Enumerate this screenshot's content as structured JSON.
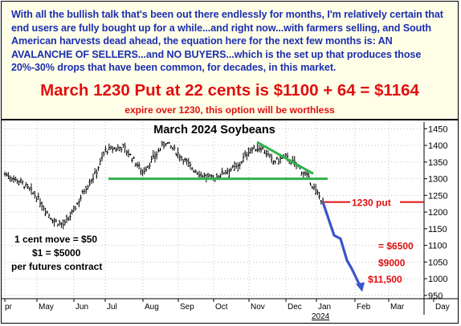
{
  "banner": {
    "commentary": "With all the bullish talk that's been out there endlessly for months, I'm relatively certain that end users are fully bought up for a while...and right now...with farmers selling, and South American harvests dead ahead, the equation here for the next few months is: AN AVALANCHE OF SELLERS...and NO BUYERS...which is the set up that produces those 20%-30% drops that have been common, for decades, in this market.",
    "offer": "March 1230 Put at 22 cents is $1100 + 64 = $1164",
    "note": "expire over 1230, this option will be worthless"
  },
  "chart_data": {
    "type": "candlestick",
    "title": "March 2024 Soybeans",
    "y_ticks": [
      950,
      1000,
      1050,
      1100,
      1150,
      1200,
      1250,
      1300,
      1350,
      1400,
      1450
    ],
    "ylim": [
      940,
      1470
    ],
    "x_ticks": [
      "pr",
      "May",
      "Jun",
      "Jul",
      "Aug",
      "Sep",
      "Oct",
      "Nov",
      "Dec",
      "Jan",
      "Feb",
      "Mar",
      "Day"
    ],
    "x_sublabel": "2024",
    "approx_close_path": [
      {
        "date": "Apr",
        "price": 1315
      },
      {
        "date": "mid-Apr",
        "price": 1290
      },
      {
        "date": "May",
        "price": 1245
      },
      {
        "date": "mid-May",
        "price": 1175
      },
      {
        "date": "late May",
        "price": 1160
      },
      {
        "date": "Jun",
        "price": 1205
      },
      {
        "date": "mid-Jun",
        "price": 1270
      },
      {
        "date": "late Jun",
        "price": 1320
      },
      {
        "date": "Jul",
        "price": 1385
      },
      {
        "date": "mid-Jul",
        "price": 1395
      },
      {
        "date": "Aug",
        "price": 1320
      },
      {
        "date": "mid-Aug",
        "price": 1365
      },
      {
        "date": "late Aug",
        "price": 1410
      },
      {
        "date": "Sep",
        "price": 1375
      },
      {
        "date": "mid-Sep",
        "price": 1330
      },
      {
        "date": "late Sep",
        "price": 1305
      },
      {
        "date": "Oct",
        "price": 1300
      },
      {
        "date": "mid-Oct",
        "price": 1325
      },
      {
        "date": "late Oct",
        "price": 1335
      },
      {
        "date": "Nov",
        "price": 1385
      },
      {
        "date": "mid-Nov",
        "price": 1395
      },
      {
        "date": "late Nov",
        "price": 1350
      },
      {
        "date": "Dec",
        "price": 1365
      },
      {
        "date": "mid-Dec",
        "price": 1340
      },
      {
        "date": "late Dec",
        "price": 1300
      },
      {
        "date": "Jan",
        "price": 1260
      },
      {
        "date": "early Jan",
        "price": 1230
      }
    ],
    "support_line": {
      "price": 1300,
      "from": "Jul",
      "to": "Jan",
      "color": "#2fb34a"
    },
    "resistance_line": {
      "from": {
        "date": "Nov",
        "price": 1410
      },
      "to": {
        "date": "early Jan",
        "price": 1315
      },
      "color": "#2fb34a"
    },
    "strike_line": {
      "price": 1230,
      "label": "1230 put",
      "color": "#e01010"
    },
    "projection": [
      {
        "date": "early Jan",
        "price": 1230
      },
      {
        "date": "mid-Jan",
        "price": 1130
      },
      {
        "date": "late Jan",
        "price": 1120
      },
      {
        "date": "early Feb",
        "price": 1055
      },
      {
        "date": "Feb",
        "price": 1030
      },
      {
        "date": "mid-Feb",
        "price": 970
      }
    ],
    "projection_color": "#3b55c7",
    "targets": [
      {
        "label": "= $6500",
        "price": 1100
      },
      {
        "label": "$9000",
        "price": 1050
      },
      {
        "label": "$11,500",
        "price": 1000
      }
    ],
    "notes": [
      "1 cent move = $50",
      "$1 = $5000",
      "per futures contract"
    ]
  }
}
